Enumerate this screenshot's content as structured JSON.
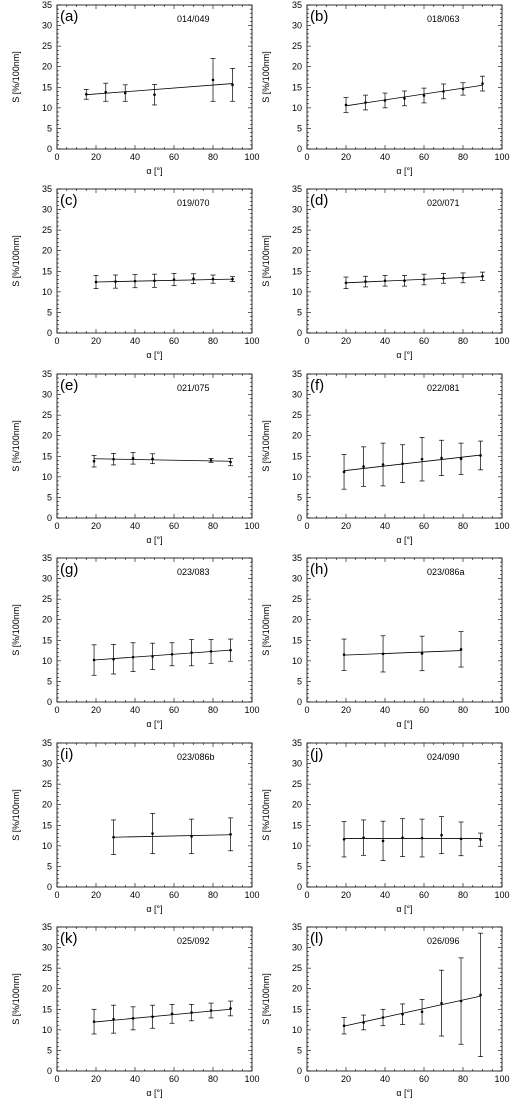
{
  "chart_data": [
    {
      "type": "scatter",
      "panel_label": "(a)",
      "title": "014/049",
      "xlabel": "α [°]",
      "ylabel": "S [%/100nm]",
      "xlim": [
        0,
        100
      ],
      "ylim": [
        0,
        35
      ],
      "xticks": [
        0,
        20,
        40,
        60,
        80,
        100
      ],
      "yticks": [
        0,
        5,
        10,
        15,
        20,
        25,
        30,
        35
      ],
      "points": [
        {
          "x": 15,
          "y": 13.3,
          "err": 1.2
        },
        {
          "x": 25,
          "y": 13.8,
          "err": 2.2
        },
        {
          "x": 35,
          "y": 13.6,
          "err": 2.0
        },
        {
          "x": 50,
          "y": 13.2,
          "err": 2.5
        },
        {
          "x": 80,
          "y": 16.8,
          "err": 5.2
        },
        {
          "x": 90,
          "y": 15.6,
          "err": 4.0
        }
      ],
      "fit": {
        "x": [
          15,
          90
        ],
        "y": [
          13.2,
          15.9
        ]
      }
    },
    {
      "type": "scatter",
      "panel_label": "(b)",
      "title": "018/063",
      "xlabel": "α [°]",
      "ylabel": "S [%/100nm]",
      "xlim": [
        0,
        100
      ],
      "ylim": [
        0,
        35
      ],
      "xticks": [
        0,
        20,
        40,
        60,
        80,
        100
      ],
      "yticks": [
        0,
        5,
        10,
        15,
        20,
        25,
        30,
        35
      ],
      "points": [
        {
          "x": 20,
          "y": 10.7,
          "err": 1.8
        },
        {
          "x": 30,
          "y": 11.3,
          "err": 1.8
        },
        {
          "x": 40,
          "y": 11.8,
          "err": 1.8
        },
        {
          "x": 50,
          "y": 12.3,
          "err": 1.8
        },
        {
          "x": 60,
          "y": 13.0,
          "err": 1.8
        },
        {
          "x": 70,
          "y": 14.0,
          "err": 1.8
        },
        {
          "x": 80,
          "y": 14.6,
          "err": 1.5
        },
        {
          "x": 90,
          "y": 15.9,
          "err": 1.8
        }
      ],
      "fit": {
        "x": [
          20,
          90
        ],
        "y": [
          10.5,
          15.5
        ]
      }
    },
    {
      "type": "scatter",
      "panel_label": "(c)",
      "title": "019/070",
      "xlabel": "α [°]",
      "ylabel": "S [%/100nm]",
      "xlim": [
        0,
        100
      ],
      "ylim": [
        0,
        35
      ],
      "xticks": [
        0,
        20,
        40,
        60,
        80,
        100
      ],
      "yticks": [
        0,
        5,
        10,
        15,
        20,
        25,
        30,
        35
      ],
      "points": [
        {
          "x": 20,
          "y": 12.4,
          "err": 1.6
        },
        {
          "x": 30,
          "y": 12.5,
          "err": 1.6
        },
        {
          "x": 40,
          "y": 12.6,
          "err": 1.6
        },
        {
          "x": 50,
          "y": 12.7,
          "err": 1.6
        },
        {
          "x": 60,
          "y": 13.0,
          "err": 1.5
        },
        {
          "x": 70,
          "y": 13.2,
          "err": 1.2
        },
        {
          "x": 80,
          "y": 13.1,
          "err": 1.0
        },
        {
          "x": 90,
          "y": 13.1,
          "err": 0.6
        }
      ],
      "fit": {
        "x": [
          20,
          90
        ],
        "y": [
          12.4,
          13.1
        ]
      }
    },
    {
      "type": "scatter",
      "panel_label": "(d)",
      "title": "020/071",
      "xlabel": "α [°]",
      "ylabel": "S [%/100nm]",
      "xlim": [
        0,
        100
      ],
      "ylim": [
        0,
        35
      ],
      "xticks": [
        0,
        20,
        40,
        60,
        80,
        100
      ],
      "yticks": [
        0,
        5,
        10,
        15,
        20,
        25,
        30,
        35
      ],
      "points": [
        {
          "x": 20,
          "y": 12.2,
          "err": 1.4
        },
        {
          "x": 30,
          "y": 12.5,
          "err": 1.3
        },
        {
          "x": 40,
          "y": 12.7,
          "err": 1.3
        },
        {
          "x": 50,
          "y": 12.7,
          "err": 1.3
        },
        {
          "x": 60,
          "y": 13.0,
          "err": 1.3
        },
        {
          "x": 70,
          "y": 13.3,
          "err": 1.2
        },
        {
          "x": 80,
          "y": 13.4,
          "err": 1.2
        },
        {
          "x": 90,
          "y": 13.8,
          "err": 1.0
        }
      ],
      "fit": {
        "x": [
          20,
          90
        ],
        "y": [
          12.2,
          13.7
        ]
      }
    },
    {
      "type": "scatter",
      "panel_label": "(e)",
      "title": "021/075",
      "xlabel": "α [°]",
      "ylabel": "S [%/100nm]",
      "xlim": [
        0,
        100
      ],
      "ylim": [
        0,
        35
      ],
      "xticks": [
        0,
        20,
        40,
        60,
        80,
        100
      ],
      "yticks": [
        0,
        5,
        10,
        15,
        20,
        25,
        30,
        35
      ],
      "points": [
        {
          "x": 19,
          "y": 13.8,
          "err": 1.4
        },
        {
          "x": 29,
          "y": 14.3,
          "err": 1.4
        },
        {
          "x": 39,
          "y": 14.5,
          "err": 1.4
        },
        {
          "x": 49,
          "y": 14.4,
          "err": 1.2
        },
        {
          "x": 79,
          "y": 14.0,
          "err": 0.5
        },
        {
          "x": 89,
          "y": 13.6,
          "err": 0.9
        }
      ],
      "fit": {
        "x": [
          19,
          89
        ],
        "y": [
          14.4,
          13.8
        ]
      }
    },
    {
      "type": "scatter",
      "panel_label": "(f)",
      "title": "022/081",
      "xlabel": "α [°]",
      "ylabel": "S [%/100nm]",
      "xlim": [
        0,
        100
      ],
      "ylim": [
        0,
        35
      ],
      "xticks": [
        0,
        20,
        40,
        60,
        80,
        100
      ],
      "yticks": [
        0,
        5,
        10,
        15,
        20,
        25,
        30,
        35
      ],
      "points": [
        {
          "x": 19,
          "y": 11.2,
          "err": 4.2
        },
        {
          "x": 29,
          "y": 12.5,
          "err": 4.8
        },
        {
          "x": 39,
          "y": 13.0,
          "err": 5.2
        },
        {
          "x": 49,
          "y": 13.2,
          "err": 4.6
        },
        {
          "x": 59,
          "y": 14.3,
          "err": 5.3
        },
        {
          "x": 69,
          "y": 14.6,
          "err": 4.3
        },
        {
          "x": 79,
          "y": 14.4,
          "err": 3.8
        },
        {
          "x": 89,
          "y": 15.2,
          "err": 3.5
        }
      ],
      "fit": {
        "x": [
          19,
          89
        ],
        "y": [
          11.5,
          15.3
        ]
      }
    },
    {
      "type": "scatter",
      "panel_label": "(g)",
      "title": "023/083",
      "xlabel": "α [°]",
      "ylabel": "S [%/100nm]",
      "xlim": [
        0,
        100
      ],
      "ylim": [
        0,
        35
      ],
      "xticks": [
        0,
        20,
        40,
        60,
        80,
        100
      ],
      "yticks": [
        0,
        5,
        10,
        15,
        20,
        25,
        30,
        35
      ],
      "points": [
        {
          "x": 19,
          "y": 10.2,
          "err": 3.7
        },
        {
          "x": 29,
          "y": 10.4,
          "err": 3.6
        },
        {
          "x": 39,
          "y": 10.9,
          "err": 3.5
        },
        {
          "x": 49,
          "y": 11.1,
          "err": 3.2
        },
        {
          "x": 59,
          "y": 11.6,
          "err": 2.8
        },
        {
          "x": 69,
          "y": 12.0,
          "err": 3.2
        },
        {
          "x": 79,
          "y": 12.3,
          "err": 2.9
        },
        {
          "x": 89,
          "y": 12.6,
          "err": 2.7
        }
      ],
      "fit": {
        "x": [
          19,
          89
        ],
        "y": [
          10.2,
          12.6
        ]
      }
    },
    {
      "type": "scatter",
      "panel_label": "(h)",
      "title": "023/086a",
      "xlabel": "α [°]",
      "ylabel": "S [%/100nm]",
      "xlim": [
        0,
        100
      ],
      "ylim": [
        0,
        35
      ],
      "xticks": [
        0,
        20,
        40,
        60,
        80,
        100
      ],
      "yticks": [
        0,
        5,
        10,
        15,
        20,
        25,
        30,
        35
      ],
      "points": [
        {
          "x": 19,
          "y": 11.5,
          "err": 3.8
        },
        {
          "x": 39,
          "y": 11.7,
          "err": 4.4
        },
        {
          "x": 59,
          "y": 11.8,
          "err": 4.2
        },
        {
          "x": 79,
          "y": 12.8,
          "err": 4.3
        }
      ],
      "fit": {
        "x": [
          19,
          79
        ],
        "y": [
          11.4,
          12.5
        ]
      }
    },
    {
      "type": "scatter",
      "panel_label": "(i)",
      "title": "023/086b",
      "xlabel": "α [°]",
      "ylabel": "S [%/100nm]",
      "xlim": [
        0,
        100
      ],
      "ylim": [
        0,
        35
      ],
      "xticks": [
        0,
        20,
        40,
        60,
        80,
        100
      ],
      "yticks": [
        0,
        5,
        10,
        15,
        20,
        25,
        30,
        35
      ],
      "points": [
        {
          "x": 29,
          "y": 12.1,
          "err": 4.2
        },
        {
          "x": 49,
          "y": 13.0,
          "err": 4.9
        },
        {
          "x": 69,
          "y": 12.3,
          "err": 4.2
        },
        {
          "x": 89,
          "y": 12.8,
          "err": 4.0
        }
      ],
      "fit": {
        "x": [
          29,
          89
        ],
        "y": [
          12.1,
          12.7
        ]
      }
    },
    {
      "type": "scatter",
      "panel_label": "(j)",
      "title": "024/090",
      "xlabel": "α [°]",
      "ylabel": "S [%/100nm]",
      "xlim": [
        0,
        100
      ],
      "ylim": [
        0,
        35
      ],
      "xticks": [
        0,
        20,
        40,
        60,
        80,
        100
      ],
      "yticks": [
        0,
        5,
        10,
        15,
        20,
        25,
        30,
        35
      ],
      "points": [
        {
          "x": 19,
          "y": 11.6,
          "err": 4.3
        },
        {
          "x": 29,
          "y": 12.0,
          "err": 4.3
        },
        {
          "x": 39,
          "y": 11.2,
          "err": 4.8
        },
        {
          "x": 49,
          "y": 12.0,
          "err": 4.6
        },
        {
          "x": 59,
          "y": 11.9,
          "err": 4.6
        },
        {
          "x": 69,
          "y": 12.6,
          "err": 4.5
        },
        {
          "x": 79,
          "y": 11.7,
          "err": 4.1
        },
        {
          "x": 89,
          "y": 11.5,
          "err": 1.6
        }
      ],
      "fit": {
        "x": [
          19,
          89
        ],
        "y": [
          11.8,
          11.8
        ]
      }
    },
    {
      "type": "scatter",
      "panel_label": "(k)",
      "title": "025/092",
      "xlabel": "α [°]",
      "ylabel": "S [%/100nm]",
      "xlim": [
        0,
        100
      ],
      "ylim": [
        0,
        35
      ],
      "xticks": [
        0,
        20,
        40,
        60,
        80,
        100
      ],
      "yticks": [
        0,
        5,
        10,
        15,
        20,
        25,
        30,
        35
      ],
      "points": [
        {
          "x": 19,
          "y": 12.0,
          "err": 3.0
        },
        {
          "x": 29,
          "y": 12.6,
          "err": 3.4
        },
        {
          "x": 39,
          "y": 12.8,
          "err": 2.8
        },
        {
          "x": 49,
          "y": 13.2,
          "err": 2.8
        },
        {
          "x": 59,
          "y": 13.9,
          "err": 2.3
        },
        {
          "x": 69,
          "y": 14.2,
          "err": 2.0
        },
        {
          "x": 79,
          "y": 14.7,
          "err": 1.8
        },
        {
          "x": 89,
          "y": 15.2,
          "err": 1.8
        }
      ],
      "fit": {
        "x": [
          19,
          89
        ],
        "y": [
          11.9,
          15.0
        ]
      }
    },
    {
      "type": "scatter",
      "panel_label": "(l)",
      "title": "026/096",
      "xlabel": "α [°]",
      "ylabel": "S [%/100nm]",
      "xlim": [
        0,
        100
      ],
      "ylim": [
        0,
        35
      ],
      "xticks": [
        0,
        20,
        40,
        60,
        80,
        100
      ],
      "yticks": [
        0,
        5,
        10,
        15,
        20,
        25,
        30,
        35
      ],
      "points": [
        {
          "x": 19,
          "y": 11.0,
          "err": 2.0
        },
        {
          "x": 29,
          "y": 11.8,
          "err": 1.8
        },
        {
          "x": 39,
          "y": 13.0,
          "err": 2.0
        },
        {
          "x": 49,
          "y": 13.8,
          "err": 2.5
        },
        {
          "x": 59,
          "y": 14.4,
          "err": 3.0
        },
        {
          "x": 69,
          "y": 16.5,
          "err": 8.0
        },
        {
          "x": 79,
          "y": 17.0,
          "err": 10.5
        },
        {
          "x": 89,
          "y": 18.5,
          "err": 15.0
        }
      ],
      "fit": {
        "x": [
          19,
          89
        ],
        "y": [
          10.9,
          18.2
        ]
      }
    }
  ]
}
